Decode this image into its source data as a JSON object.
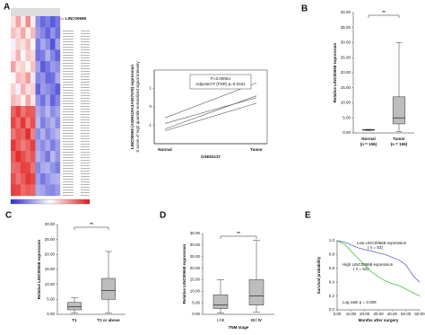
{
  "chart_data": [
    {
      "type": "heatmap",
      "panel_label": "A",
      "highlight": "LINC00668",
      "values": [
        [
          0.4,
          1.2,
          0.3,
          1.5,
          0.2,
          -1.6,
          -2.1,
          -1.8,
          -2.3,
          -1.9
        ],
        [
          0.8,
          0.5,
          1.1,
          0.2,
          0.9,
          -1.4,
          -1.7,
          -2.2,
          -1.5,
          -2.0
        ],
        [
          -0.2,
          0.6,
          0.4,
          0.9,
          0.1,
          -1.9,
          -1.2,
          -1.6,
          -2.4,
          -1.3
        ],
        [
          0.3,
          1.0,
          -0.1,
          0.7,
          0.5,
          -2.0,
          -1.8,
          -1.1,
          -1.7,
          -2.2
        ],
        [
          1.2,
          0.4,
          0.6,
          0.1,
          0.8,
          -1.3,
          -2.3,
          -1.9,
          -1.4,
          -1.6
        ],
        [
          0.1,
          0.9,
          0.7,
          1.3,
          -0.3,
          -1.7,
          -1.5,
          -2.1,
          -2.0,
          -1.2
        ],
        [
          0.6,
          -0.2,
          1.0,
          0.4,
          0.6,
          -2.2,
          -1.4,
          -1.6,
          -1.8,
          -2.3
        ],
        [
          0.9,
          0.7,
          0.2,
          1.1,
          0.3,
          -1.5,
          -2.0,
          -1.3,
          -2.2,
          -1.7
        ],
        [
          2.0,
          2.5,
          1.8,
          2.2,
          2.1,
          -1.2,
          -1.5,
          -1.0,
          -1.6,
          -1.3
        ],
        [
          2.4,
          1.9,
          2.6,
          1.7,
          2.3,
          -1.0,
          -1.8,
          -1.4,
          -1.1,
          -1.6
        ],
        [
          1.8,
          2.2,
          2.0,
          2.7,
          1.6,
          -1.6,
          -1.1,
          -1.7,
          -1.3,
          -1.0
        ],
        [
          2.6,
          2.1,
          1.7,
          2.0,
          2.5,
          -1.3,
          -1.6,
          -1.2,
          -1.8,
          -1.4
        ],
        [
          2.1,
          2.7,
          2.3,
          1.9,
          2.2,
          -1.1,
          -1.4,
          -1.9,
          -1.0,
          -1.5
        ],
        [
          1.9,
          2.0,
          2.5,
          2.4,
          1.8,
          -1.7,
          -1.2,
          -1.1,
          -1.5,
          -1.8
        ],
        [
          2.3,
          1.8,
          2.1,
          2.6,
          2.4,
          -1.4,
          -1.9,
          -1.5,
          -1.2,
          -1.1
        ],
        [
          2.5,
          2.4,
          1.9,
          2.1,
          2.0,
          -1.2,
          -1.3,
          -1.6,
          -1.7,
          -1.4
        ]
      ],
      "color_low": "#2a2ad0",
      "color_mid": "#ffffff",
      "color_high": "#e01818",
      "vlim": [
        -3,
        3
      ]
    },
    {
      "type": "line",
      "xlabel": "GSE53137",
      "ylabel": "LINC00668 (ASHG19A3A057578) expression",
      "ylabel_line2": "Z-score of log2 quantile-normalized signal intensity",
      "annotations": [
        "P=0.00054",
        "Adjusted P (FDR) p=0.0161"
      ],
      "categories": [
        "Normal",
        "Tumor"
      ],
      "ylim": [
        -2,
        2
      ],
      "yticks": [
        -1,
        0,
        1
      ],
      "color": "#555555",
      "series": [
        {
          "values": [
            -0.6,
            1.3
          ]
        },
        {
          "values": [
            -0.9,
            0.5
          ]
        },
        {
          "values": [
            -1.2,
            0.6
          ]
        },
        {
          "values": [
            -1.3,
            0.2
          ]
        }
      ]
    },
    {
      "type": "box",
      "panel_label": "B",
      "ylabel": "Relative LINC00668 expression",
      "categories": [
        "Normal",
        "Tumor"
      ],
      "category_notes": [
        "(n = 106)",
        "(n = 106)"
      ],
      "significance": "**",
      "ylim": [
        0,
        40
      ],
      "color": "#bdbdbd",
      "yticks": [
        {
          "value": 0,
          "label": "0.00"
        },
        {
          "value": 5,
          "label": "5.00"
        },
        {
          "value": 10,
          "label": "10.00"
        },
        {
          "value": 15,
          "label": "15.00"
        },
        {
          "value": 20,
          "label": "20.00"
        },
        {
          "value": 25,
          "label": "25.00"
        },
        {
          "value": 30,
          "label": "30.00"
        },
        {
          "value": 35,
          "label": "35.00"
        },
        {
          "value": 40,
          "label": "40.00"
        }
      ],
      "whisker_low": [
        0.8,
        0.5
      ],
      "q1": [
        0.9,
        3
      ],
      "median": [
        1,
        5
      ],
      "q3": [
        1.1,
        12
      ],
      "whisker_high": [
        1.2,
        30
      ]
    },
    {
      "type": "box",
      "panel_label": "C",
      "ylabel": "Relative LINC00668 expression",
      "categories": [
        "T1",
        "T2 or above"
      ],
      "significance": "**",
      "ylim": [
        0,
        30
      ],
      "color": "#bdbdbd",
      "yticks": [
        {
          "value": 0,
          "label": "0.00"
        },
        {
          "value": 5,
          "label": "5.00"
        },
        {
          "value": 10,
          "label": "10.00"
        },
        {
          "value": 15,
          "label": "15.00"
        },
        {
          "value": 20,
          "label": "20.00"
        },
        {
          "value": 25,
          "label": "25.00"
        },
        {
          "value": 30,
          "label": "30.00"
        }
      ],
      "whisker_low": [
        0.5,
        0.5
      ],
      "q1": [
        1.5,
        5
      ],
      "median": [
        2.5,
        8
      ],
      "q3": [
        4,
        12
      ],
      "whisker_high": [
        5.5,
        21
      ]
    },
    {
      "type": "box",
      "panel_label": "D",
      "ylabel": "Relative LINC00668 expression",
      "xlabel": "TNM stage",
      "categories": [
        "I / II",
        "III / IV"
      ],
      "significance": "**",
      "ylim": [
        0,
        35
      ],
      "color": "#bdbdbd",
      "yticks": [
        {
          "value": 0,
          "label": "0.00"
        },
        {
          "value": 5,
          "label": "5.00"
        },
        {
          "value": 10,
          "label": "10.00"
        },
        {
          "value": 15,
          "label": "15.00"
        },
        {
          "value": 20,
          "label": "20.00"
        },
        {
          "value": 25,
          "label": "25.00"
        },
        {
          "value": 30,
          "label": "30.00"
        },
        {
          "value": 35,
          "label": "35.00"
        }
      ],
      "whisker_low": [
        0.5,
        1
      ],
      "q1": [
        2.5,
        4
      ],
      "median": [
        4,
        8
      ],
      "q3": [
        8.5,
        15
      ],
      "whisker_high": [
        15,
        32
      ]
    },
    {
      "type": "survival",
      "panel_label": "E",
      "ylabel": "Survival probability",
      "xlabel": "Months after surgery",
      "annotation": "Log rank p = 0.008",
      "xlim": [
        0,
        60
      ],
      "ylim": [
        0,
        1
      ],
      "xticks": [
        {
          "value": 0,
          "label": "0.00"
        },
        {
          "value": 10,
          "label": "10.00"
        },
        {
          "value": 20,
          "label": "20.00"
        },
        {
          "value": 30,
          "label": "30.00"
        },
        {
          "value": 40,
          "label": "40.00"
        },
        {
          "value": 50,
          "label": "50.00"
        },
        {
          "value": 60,
          "label": "60.00"
        }
      ],
      "yticks": [
        {
          "value": 0,
          "label": "0.0"
        },
        {
          "value": 0.2,
          "label": "0.2"
        },
        {
          "value": 0.4,
          "label": "0.4"
        },
        {
          "value": 0.6,
          "label": "0.6"
        },
        {
          "value": 0.8,
          "label": "0.8"
        },
        {
          "value": 1,
          "label": "1.0"
        }
      ],
      "series": [
        {
          "name": "Low LINC00668 expression",
          "note": "( n = 53)",
          "color": "#6060d8",
          "x": [
            0,
            5,
            8,
            10,
            15,
            20,
            25,
            30,
            35,
            40,
            45,
            50,
            55,
            60
          ],
          "values": [
            1,
            0.98,
            0.96,
            0.94,
            0.9,
            0.87,
            0.85,
            0.82,
            0.8,
            0.76,
            0.72,
            0.65,
            0.5,
            0.4
          ]
        },
        {
          "name": "High LINC00668 expression",
          "note": "( n = 53)",
          "color": "#3fc43f",
          "x": [
            0,
            5,
            8,
            10,
            15,
            20,
            25,
            30,
            35,
            40,
            45,
            50,
            55,
            60
          ],
          "values": [
            1,
            0.95,
            0.9,
            0.85,
            0.75,
            0.65,
            0.55,
            0.48,
            0.42,
            0.38,
            0.35,
            0.3,
            0.25,
            0.2
          ]
        }
      ]
    }
  ]
}
